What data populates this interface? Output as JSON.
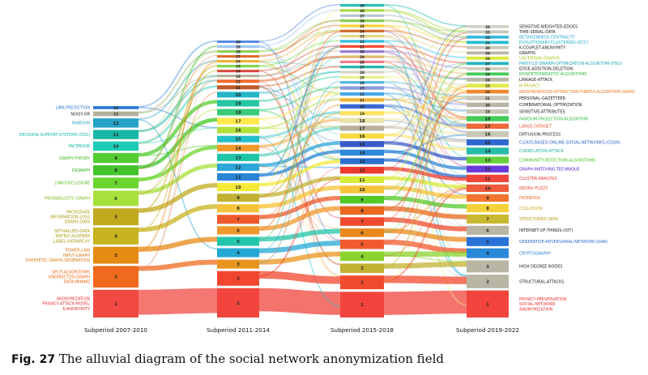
{
  "caption": {
    "label": "Fig. 27",
    "text": "The alluvial diagram of the social network anonymization field"
  },
  "diagram": {
    "type": "alluvial",
    "periods": [
      {
        "label": "Subperiod 2007-2010",
        "modules": [
          {
            "id": "14",
            "color": "#2d7ad6",
            "keywords": [
              "LINK-PREDICTION"
            ],
            "labelColor": "#2d7ad6"
          },
          {
            "id": "13",
            "color": "#b5b09c",
            "keywords": [
              "NOISY-OR"
            ],
            "labelColor": "#222222"
          },
          {
            "id": "12",
            "color": "#25a2c8",
            "keywords": [
              "RANDOM"
            ],
            "labelColor": "#25a2c8"
          },
          {
            "id": "11",
            "color": "#16b7a5",
            "keywords": [
              "DECISION-SUPPORT-SYSTEMS-(DSS)"
            ],
            "labelColor": "#16b7a5"
          },
          {
            "id": "10",
            "color": "#1ecdb8",
            "keywords": [
              "FACEBOOK"
            ],
            "labelColor": "#14b8a6"
          },
          {
            "id": "9",
            "color": "#55cc33",
            "keywords": [
              "GRAPH-THEORY"
            ],
            "labelColor": "#44bb22"
          },
          {
            "id": "8",
            "color": "#44c42b",
            "keywords": [
              "DIGRAPH"
            ],
            "labelColor": "#33aa22"
          },
          {
            "id": "7",
            "color": "#69d52d",
            "keywords": [
              "LINK-DISCLOSURE"
            ],
            "labelColor": "#55bb22"
          },
          {
            "id": "6",
            "color": "#a8e03c",
            "keywords": [
              "PROBABILISTIC-GRAPH"
            ],
            "labelColor": "#88bb22"
          },
          {
            "id": "5",
            "color": "#c2aa1e",
            "keywords": [
              "MICRODATA",
              "INFORMATION-LOSS",
              "GRAPH-DATA"
            ],
            "labelColor": "#aa9a11"
          },
          {
            "id": "4",
            "color": "#c7b41e",
            "keywords": [
              "SET-VALUED-DATA",
              "MATRIX-ALGEBRA",
              "LABEL-HIERARCHY"
            ],
            "labelColor": "#aa9a11"
          },
          {
            "id": "3",
            "color": "#e68a14",
            "keywords": [
              "POWER-LAW",
              "INPUT-GRAPH",
              "SYNTHETIC-GRAPH-GENERATION"
            ],
            "labelColor": "#dd7711"
          },
          {
            "id": "2",
            "color": "#f06a1e",
            "keywords": [
              "SPLIT-ALGORITHMS",
              "UNDIRECTED-GRAPH",
              "DATA-MINING"
            ],
            "labelColor": "#ee6611"
          },
          {
            "id": "1",
            "color": "#f04a43",
            "keywords": [
              "ANONYMIZATION",
              "PRIVACY-ATTACK-MODEL",
              "K-ANONYMITY"
            ],
            "labelColor": "#ee3333"
          }
        ]
      },
      {
        "label": "Subperiod 2011-2014",
        "modules": [
          {
            "id": "30",
            "color": "#5a8ae0"
          },
          {
            "id": "29",
            "color": "#9ec7ee"
          },
          {
            "id": "28",
            "color": "#8ccf52"
          },
          {
            "id": "27",
            "color": "#e06a2a"
          },
          {
            "id": "26",
            "color": "#f0b030"
          },
          {
            "id": "25",
            "color": "#7ad84a"
          },
          {
            "id": "24",
            "color": "#d44a3a"
          },
          {
            "id": "23",
            "color": "#b5b09c"
          },
          {
            "id": "22",
            "color": "#ee6a2e"
          },
          {
            "id": "21",
            "color": "#c05a2a"
          },
          {
            "id": "20",
            "color": "#22b6c6"
          },
          {
            "id": "19",
            "color": "#26c6a2"
          },
          {
            "id": "18",
            "color": "#3acb7a"
          },
          {
            "id": "17",
            "color": "#ffe84a"
          },
          {
            "id": "16",
            "color": "#b2e03a"
          },
          {
            "id": "15",
            "color": "#22c0c8"
          },
          {
            "id": "14",
            "color": "#f09a2c"
          },
          {
            "id": "13",
            "color": "#1ec4a8"
          },
          {
            "id": "12",
            "color": "#2da6d8"
          },
          {
            "id": "11",
            "color": "#2a86d4"
          },
          {
            "id": "10",
            "color": "#f2ea36"
          },
          {
            "id": "9",
            "color": "#c2b232"
          },
          {
            "id": "8",
            "color": "#f5c43a"
          },
          {
            "id": "7",
            "color": "#ee5a2a"
          },
          {
            "id": "6",
            "color": "#f0982c"
          },
          {
            "id": "5",
            "color": "#22c6aa"
          },
          {
            "id": "4",
            "color": "#24a8d6"
          },
          {
            "id": "3",
            "color": "#e8941e"
          },
          {
            "id": "2",
            "color": "#f2452e"
          },
          {
            "id": "1",
            "color": "#f0443c"
          }
        ]
      },
      {
        "label": "Subperiod 2015-2018",
        "modules": [
          {
            "id": "39",
            "color": "#26c0b0"
          },
          {
            "id": "38",
            "color": "#a8d840"
          },
          {
            "id": "37",
            "color": "#b7c5d2"
          },
          {
            "id": "36",
            "color": "#8ccf52"
          },
          {
            "id": "35",
            "color": "#ffd230"
          },
          {
            "id": "34",
            "color": "#d26a2a"
          },
          {
            "id": "33",
            "color": "#e2d88a"
          },
          {
            "id": "32",
            "color": "#2ebce0"
          },
          {
            "id": "31",
            "color": "#f2442e"
          },
          {
            "id": "30",
            "color": "#9a7ad8"
          },
          {
            "id": "29",
            "color": "#e0b868"
          },
          {
            "id": "28",
            "color": "#ef7d8a"
          },
          {
            "id": "27",
            "color": "#22b4a8"
          },
          {
            "id": "26",
            "color": "#d2d4c6"
          },
          {
            "id": "25",
            "color": "#e8f088"
          },
          {
            "id": "24",
            "color": "#4ab8e0"
          },
          {
            "id": "23",
            "color": "#8a9ad8"
          },
          {
            "id": "22",
            "color": "#48a8e8"
          },
          {
            "id": "21",
            "color": "#f0b030"
          },
          {
            "id": "20",
            "color": "#3a6ad0"
          },
          {
            "id": "19",
            "color": "#ffe262"
          },
          {
            "id": "18",
            "color": "#eae4a8"
          },
          {
            "id": "17",
            "color": "#b9b09c"
          },
          {
            "id": "16",
            "color": "#f5da40"
          },
          {
            "id": "15",
            "color": "#3a5ac8"
          },
          {
            "id": "14",
            "color": "#2d8ad8"
          },
          {
            "id": "13",
            "color": "#2a70d0"
          },
          {
            "id": "12",
            "color": "#ee3a2e"
          },
          {
            "id": "11",
            "color": "#d8ea3a"
          },
          {
            "id": "10",
            "color": "#f5c43a"
          },
          {
            "id": "9",
            "color": "#55c82a"
          },
          {
            "id": "8",
            "color": "#e8681e"
          },
          {
            "id": "7",
            "color": "#f04a2e"
          },
          {
            "id": "6",
            "color": "#e88a1e"
          },
          {
            "id": "5",
            "color": "#f25a2e"
          },
          {
            "id": "4",
            "color": "#8ad42d"
          },
          {
            "id": "3",
            "color": "#c2b232"
          },
          {
            "id": "2",
            "color": "#f24a2e"
          },
          {
            "id": "1",
            "color": "#f2443c"
          }
        ]
      },
      {
        "label": "Subperiod 2019-2022",
        "modules": [
          {
            "id": "34",
            "color": "#d2d0c8",
            "keywords": [
              "SENSITIVE-WEIGHTED-EDGES"
            ],
            "labelColor": "#222222"
          },
          {
            "id": "33",
            "color": "#c9c7b8",
            "keywords": [
              "TIME-SERIAL-DATA"
            ],
            "labelColor": "#222222"
          },
          {
            "id": "32",
            "color": "#3ab8e0",
            "keywords": [
              "BETWEENNESS-CENTRALITY"
            ],
            "labelColor": "#2aa8d8"
          },
          {
            "id": "31",
            "color": "#26bcd0",
            "keywords": [
              "EVOLUTIONARY-CLUSTERING-(ECC)"
            ],
            "labelColor": "#22b2c6"
          },
          {
            "id": "30",
            "color": "#c9c7b8",
            "keywords": [
              "K-COUPLET-ANONYMITY"
            ],
            "labelColor": "#222222"
          },
          {
            "id": "29",
            "color": "#b9b6a6",
            "keywords": [
              "GRAPHS"
            ],
            "labelColor": "#222222"
          },
          {
            "id": "28",
            "color": "#d8ea3a",
            "keywords": [
              "UNCERTAIN-GRAPHS"
            ],
            "labelColor": "#aacc22"
          },
          {
            "id": "27",
            "color": "#26b4c4",
            "keywords": [
              "PARTICLE-SWARM-OPTIMIZATION-ALGORITHM-(PSO)"
            ],
            "labelColor": "#22a6b8"
          },
          {
            "id": "26",
            "color": "#cfcdbe",
            "keywords": [
              "EDGE-ADDITION-DELETION"
            ],
            "labelColor": "#222222"
          },
          {
            "id": "25",
            "color": "#44cc5a",
            "keywords": [
              "NONDETERMINISTIC-ALGORITHMS"
            ],
            "labelColor": "#33bb44"
          },
          {
            "id": "24",
            "color": "#b9b6a6",
            "keywords": [
              "LINKAGE-ATTACK"
            ],
            "labelColor": "#222222"
          },
          {
            "id": "23",
            "color": "#e0e84a",
            "keywords": [
              "N-PRIVACY"
            ],
            "labelColor": "#bbbb22"
          },
          {
            "id": "22",
            "color": "#f08a2e",
            "keywords": [
              "NEIGHBORHOOD-ATTRACTION-FIREFLY-ALGORITHM-(NAFA)"
            ],
            "labelColor": "#ee7722"
          },
          {
            "id": "21",
            "color": "#c9c7b8",
            "keywords": [
              "PERSONAL-GAZETTEER"
            ],
            "labelColor": "#222222"
          },
          {
            "id": "20",
            "color": "#b9b6a6",
            "keywords": [
              "COMBINATORIAL OPTIMIZATION"
            ],
            "labelColor": "#222222"
          },
          {
            "id": "19",
            "color": "#c9c7b8",
            "keywords": [
              "SENSITIVE-ATTRIBUTES"
            ],
            "labelColor": "#222222"
          },
          {
            "id": "18",
            "color": "#44cc5a",
            "keywords": [
              "RANDOM-PROJECTION-ALGORITHM"
            ],
            "labelColor": "#33bb44"
          },
          {
            "id": "17",
            "color": "#ee6a3a",
            "keywords": [
              "LARGE-DATASET"
            ],
            "labelColor": "#ee5533"
          },
          {
            "id": "16",
            "color": "#c9c7b8",
            "keywords": [
              "DIFFUSION-PROCESS"
            ],
            "labelColor": "#222222"
          },
          {
            "id": "15",
            "color": "#2d68d0",
            "keywords": [
              "CLOUD-BASED-ONLINE-SOCIAL-NETWORKS-(COSN)"
            ],
            "labelColor": "#2a5ec8"
          },
          {
            "id": "14",
            "color": "#26bca8",
            "keywords": [
              "CORRELATION-ATTACK"
            ],
            "labelColor": "#22ae9a"
          },
          {
            "id": "13",
            "color": "#66d03a",
            "keywords": [
              "COMMUNITY-DETECTION-ALGORITHMS"
            ],
            "labelColor": "#44bb22"
          },
          {
            "id": "12",
            "color": "#6a3ad8",
            "keywords": [
              "GRAPH-MATCHING-TECHNIQUE"
            ],
            "labelColor": "#5522cc"
          },
          {
            "id": "11",
            "color": "#f0443a",
            "keywords": [
              "CLUSTER-ANALYSIS"
            ],
            "labelColor": "#ee3333"
          },
          {
            "id": "10",
            "color": "#f05a3a",
            "keywords": [
              "NEURO-FUZZY"
            ],
            "labelColor": "#ee4433"
          },
          {
            "id": "9",
            "color": "#f2742e",
            "keywords": [
              "FACEBOOK"
            ],
            "labelColor": "#ee6622"
          },
          {
            "id": "8",
            "color": "#f5d23a",
            "keywords": [
              "COLLUSION"
            ],
            "labelColor": "#ccaa11"
          },
          {
            "id": "7",
            "color": "#c9b832",
            "keywords": [
              "STRUCTURED-DATA"
            ],
            "labelColor": "#bb9911"
          },
          {
            "id": "6",
            "color": "#b9b6a6",
            "keywords": [
              "INTERNET-OF-THINGS-(IOT)"
            ],
            "labelColor": "#222222"
          },
          {
            "id": "5",
            "color": "#2a72d8",
            "keywords": [
              "GENERATIVE-ADVERSARIAL-NETWORK-(GAN)"
            ],
            "labelColor": "#2a6ad0"
          },
          {
            "id": "4",
            "color": "#2a88d8",
            "keywords": [
              "CRYPTOGRAPHY"
            ],
            "labelColor": "#2a80d0"
          },
          {
            "id": "3",
            "color": "#b9b6a6",
            "keywords": [
              "HIGH DEGREE NODES"
            ],
            "labelColor": "#222222"
          },
          {
            "id": "2",
            "color": "#b9b6a6",
            "keywords": [
              "STRUCTURAL-ATTACKS"
            ],
            "labelColor": "#222222"
          },
          {
            "id": "1",
            "color": "#f2443c",
            "keywords": [
              "PRIVACY-PRESERVATION",
              "SOCIAL-NETWORK",
              "ANONYMIZATION"
            ],
            "labelColor": "#ee3333"
          }
        ]
      }
    ]
  }
}
